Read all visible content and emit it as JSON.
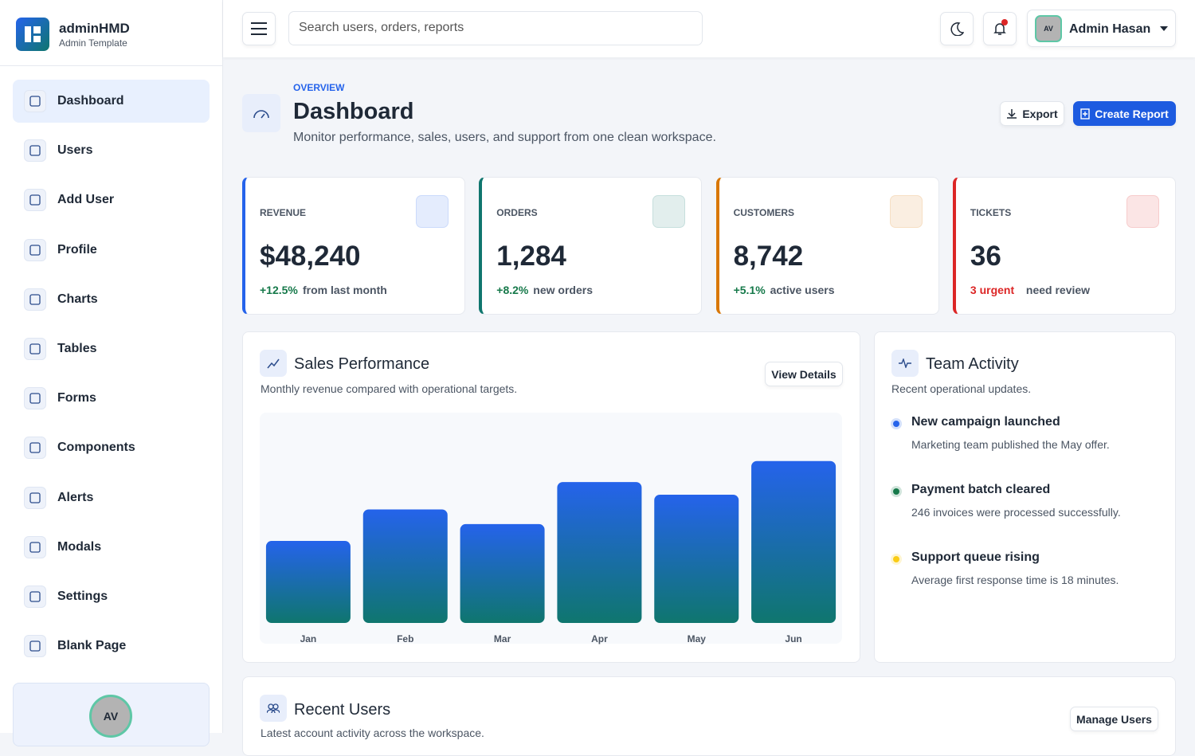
{
  "sidebar": {
    "brand": "adminHMD",
    "tagline": "Admin Template",
    "nav": [
      "Dashboard",
      "Users",
      "Add User",
      "Profile",
      "Charts",
      "Tables",
      "Forms",
      "Components",
      "Alerts",
      "Modals",
      "Settings",
      "Blank Page"
    ],
    "avatar": "AV"
  },
  "topbar": {
    "search": "Search users, orders, reports",
    "user": "Admin Hasan",
    "avatar": "AV"
  },
  "header": {
    "eyebrow": "OVERVIEW",
    "title": "Dashboard",
    "subtitle": "Monitor performance, sales, users, and support from one clean workspace.",
    "export": "Export",
    "create": "Create Report"
  },
  "stats": [
    {
      "label": "REVENUE",
      "value": "$48,240",
      "delta": "+12.5%",
      "note": "from last month",
      "color": "#2563eb",
      "tone": "#16794a"
    },
    {
      "label": "ORDERS",
      "value": "1,284",
      "delta": "+8.2%",
      "note": "new orders",
      "color": "#0f766e",
      "tone": "#16794a"
    },
    {
      "label": "CUSTOMERS",
      "value": "8,742",
      "delta": "+5.1%",
      "note": "active users",
      "color": "#d97706",
      "tone": "#16794a"
    },
    {
      "label": "TICKETS",
      "value": "36",
      "delta": "3 urgent",
      "note": "need review",
      "color": "#dc2626",
      "tone": "#dc2626"
    }
  ],
  "sales": {
    "title": "Sales Performance",
    "subtitle": "Monthly revenue compared with operational targets.",
    "button": "View Details"
  },
  "chart_data": {
    "type": "bar",
    "categories": [
      "Jan",
      "Feb",
      "Mar",
      "Apr",
      "May",
      "Jun"
    ],
    "values": [
      39,
      54,
      47,
      67,
      61,
      77
    ],
    "ylim": [
      0,
      100
    ],
    "gradient": [
      "#2563eb",
      "#0f766e"
    ]
  },
  "activity": {
    "title": "Team Activity",
    "subtitle": "Recent operational updates.",
    "items": [
      {
        "title": "New campaign launched",
        "desc": "Marketing team published the May offer.",
        "color": "#2563eb"
      },
      {
        "title": "Payment batch cleared",
        "desc": "246 invoices were processed successfully.",
        "color": "#16794a"
      },
      {
        "title": "Support queue rising",
        "desc": "Average first response time is 18 minutes.",
        "color": "#facc15"
      }
    ]
  },
  "recent": {
    "title": "Recent Users",
    "subtitle": "Latest account activity across the workspace.",
    "button": "Manage Users"
  }
}
